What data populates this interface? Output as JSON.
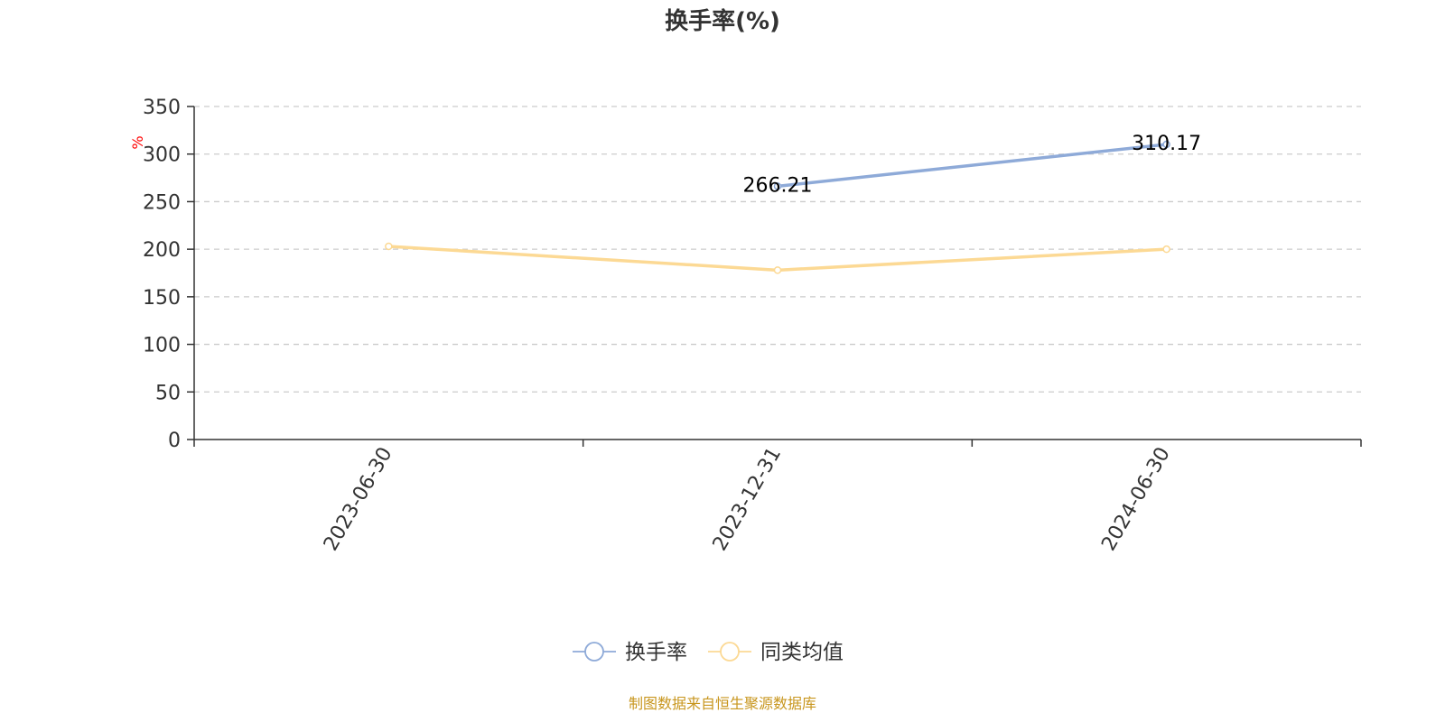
{
  "chart_data": {
    "type": "line",
    "title": "换手率(%)",
    "ylabel": "%",
    "categories": [
      "2023-06-30",
      "2023-12-31",
      "2024-06-30"
    ],
    "ylim": [
      0,
      350
    ],
    "yticks": [
      0,
      50,
      100,
      150,
      200,
      250,
      300,
      350
    ],
    "grid": true,
    "legend_position": "bottom",
    "series": [
      {
        "name": "换手率",
        "color": "#8eaad8",
        "values": [
          null,
          266.21,
          310.17
        ],
        "labels": [
          null,
          "266.21",
          "310.17"
        ]
      },
      {
        "name": "同类均值",
        "color": "#fcd994",
        "values": [
          203,
          178,
          200
        ],
        "labels": [
          null,
          null,
          null
        ]
      }
    ],
    "source": "制图数据来自恒生聚源数据库",
    "source_color": "#c8961e",
    "unit_color": "#ff0000",
    "axis_color": "#333333",
    "grid_color": "#cccccc"
  }
}
